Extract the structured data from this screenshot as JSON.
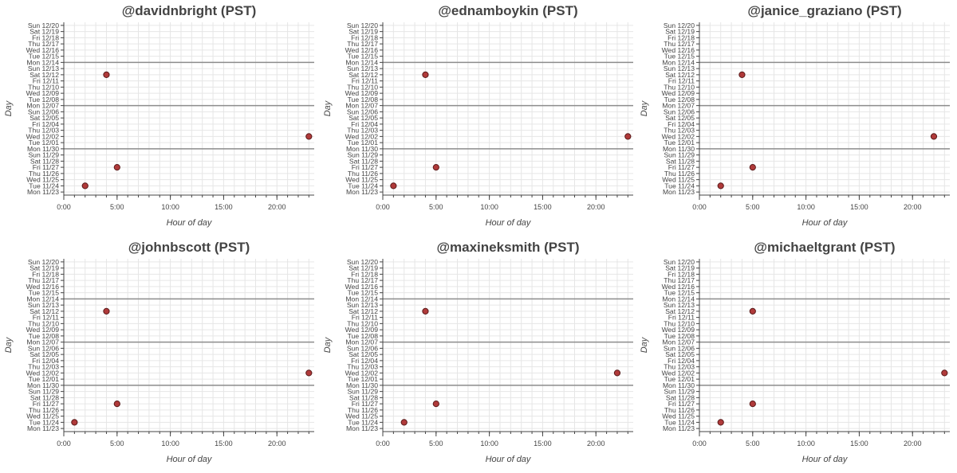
{
  "chart_data": [
    {
      "type": "scatter",
      "title": "@davidnbright (PST)",
      "xlabel": "Hour of day",
      "ylabel": "Day",
      "xlim": [
        0,
        23.5
      ],
      "x_ticks": [
        "0:00",
        "5:00",
        "10:00",
        "15:00",
        "20:00"
      ],
      "y_categories": [
        "Mon 11/23",
        "Tue 11/24",
        "Wed 11/25",
        "Thu 11/26",
        "Fri 11/27",
        "Sat 11/28",
        "Sun 11/29",
        "Mon 11/30",
        "Tue 12/01",
        "Wed 12/02",
        "Thu 12/03",
        "Fri 12/04",
        "Sat 12/05",
        "Sun 12/06",
        "Mon 12/07",
        "Tue 12/08",
        "Wed 12/09",
        "Thu 12/10",
        "Fri 12/11",
        "Sat 12/12",
        "Sun 12/13",
        "Mon 12/14",
        "Tue 12/15",
        "Wed 12/16",
        "Thu 12/17",
        "Fri 12/18",
        "Sat 12/19",
        "Sun 12/20"
      ],
      "week_separators": [
        "Mon 11/30",
        "Mon 12/07",
        "Mon 12/14"
      ],
      "grid": true,
      "points": [
        {
          "hour": 4,
          "day": "Sat 12/12"
        },
        {
          "hour": 23,
          "day": "Wed 12/02"
        },
        {
          "hour": 5,
          "day": "Fri 11/27"
        },
        {
          "hour": 2,
          "day": "Tue 11/24"
        }
      ]
    },
    {
      "type": "scatter",
      "title": "@ednamboykin (PST)",
      "xlabel": "Hour of day",
      "ylabel": "Day",
      "xlim": [
        0,
        23.5
      ],
      "x_ticks": [
        "0:00",
        "5:00",
        "10:00",
        "15:00",
        "20:00"
      ],
      "y_categories": [
        "Mon 11/23",
        "Tue 11/24",
        "Wed 11/25",
        "Thu 11/26",
        "Fri 11/27",
        "Sat 11/28",
        "Sun 11/29",
        "Mon 11/30",
        "Tue 12/01",
        "Wed 12/02",
        "Thu 12/03",
        "Fri 12/04",
        "Sat 12/05",
        "Sun 12/06",
        "Mon 12/07",
        "Tue 12/08",
        "Wed 12/09",
        "Thu 12/10",
        "Fri 12/11",
        "Sat 12/12",
        "Sun 12/13",
        "Mon 12/14",
        "Tue 12/15",
        "Wed 12/16",
        "Thu 12/17",
        "Fri 12/18",
        "Sat 12/19",
        "Sun 12/20"
      ],
      "week_separators": [
        "Mon 11/30",
        "Mon 12/07",
        "Mon 12/14"
      ],
      "grid": true,
      "points": [
        {
          "hour": 4,
          "day": "Sat 12/12"
        },
        {
          "hour": 23,
          "day": "Wed 12/02"
        },
        {
          "hour": 5,
          "day": "Fri 11/27"
        },
        {
          "hour": 1,
          "day": "Tue 11/24"
        }
      ]
    },
    {
      "type": "scatter",
      "title": "@janice_graziano (PST)",
      "xlabel": "Hour of day",
      "ylabel": "Day",
      "xlim": [
        0,
        23.5
      ],
      "x_ticks": [
        "0:00",
        "5:00",
        "10:00",
        "15:00",
        "20:00"
      ],
      "y_categories": [
        "Mon 11/23",
        "Tue 11/24",
        "Wed 11/25",
        "Thu 11/26",
        "Fri 11/27",
        "Sat 11/28",
        "Sun 11/29",
        "Mon 11/30",
        "Tue 12/01",
        "Wed 12/02",
        "Thu 12/03",
        "Fri 12/04",
        "Sat 12/05",
        "Sun 12/06",
        "Mon 12/07",
        "Tue 12/08",
        "Wed 12/09",
        "Thu 12/10",
        "Fri 12/11",
        "Sat 12/12",
        "Sun 12/13",
        "Mon 12/14",
        "Tue 12/15",
        "Wed 12/16",
        "Thu 12/17",
        "Fri 12/18",
        "Sat 12/19",
        "Sun 12/20"
      ],
      "week_separators": [
        "Mon 11/30",
        "Mon 12/07",
        "Mon 12/14"
      ],
      "grid": true,
      "points": [
        {
          "hour": 4,
          "day": "Sat 12/12"
        },
        {
          "hour": 22,
          "day": "Wed 12/02"
        },
        {
          "hour": 5,
          "day": "Fri 11/27"
        },
        {
          "hour": 2,
          "day": "Tue 11/24"
        }
      ]
    },
    {
      "type": "scatter",
      "title": "@johnbscott (PST)",
      "xlabel": "Hour of day",
      "ylabel": "Day",
      "xlim": [
        0,
        23.5
      ],
      "x_ticks": [
        "0:00",
        "5:00",
        "10:00",
        "15:00",
        "20:00"
      ],
      "y_categories": [
        "Mon 11/23",
        "Tue 11/24",
        "Wed 11/25",
        "Thu 11/26",
        "Fri 11/27",
        "Sat 11/28",
        "Sun 11/29",
        "Mon 11/30",
        "Tue 12/01",
        "Wed 12/02",
        "Thu 12/03",
        "Fri 12/04",
        "Sat 12/05",
        "Sun 12/06",
        "Mon 12/07",
        "Tue 12/08",
        "Wed 12/09",
        "Thu 12/10",
        "Fri 12/11",
        "Sat 12/12",
        "Sun 12/13",
        "Mon 12/14",
        "Tue 12/15",
        "Wed 12/16",
        "Thu 12/17",
        "Fri 12/18",
        "Sat 12/19",
        "Sun 12/20"
      ],
      "week_separators": [
        "Mon 11/30",
        "Mon 12/07",
        "Mon 12/14"
      ],
      "grid": true,
      "points": [
        {
          "hour": 4,
          "day": "Sat 12/12"
        },
        {
          "hour": 23,
          "day": "Wed 12/02"
        },
        {
          "hour": 5,
          "day": "Fri 11/27"
        },
        {
          "hour": 1,
          "day": "Tue 11/24"
        }
      ]
    },
    {
      "type": "scatter",
      "title": "@maxineksmith (PST)",
      "xlabel": "Hour of day",
      "ylabel": "Day",
      "xlim": [
        0,
        23.5
      ],
      "x_ticks": [
        "0:00",
        "5:00",
        "10:00",
        "15:00",
        "20:00"
      ],
      "y_categories": [
        "Mon 11/23",
        "Tue 11/24",
        "Wed 11/25",
        "Thu 11/26",
        "Fri 11/27",
        "Sat 11/28",
        "Sun 11/29",
        "Mon 11/30",
        "Tue 12/01",
        "Wed 12/02",
        "Thu 12/03",
        "Fri 12/04",
        "Sat 12/05",
        "Sun 12/06",
        "Mon 12/07",
        "Tue 12/08",
        "Wed 12/09",
        "Thu 12/10",
        "Fri 12/11",
        "Sat 12/12",
        "Sun 12/13",
        "Mon 12/14",
        "Tue 12/15",
        "Wed 12/16",
        "Thu 12/17",
        "Fri 12/18",
        "Sat 12/19",
        "Sun 12/20"
      ],
      "week_separators": [
        "Mon 11/30",
        "Mon 12/07",
        "Mon 12/14"
      ],
      "grid": true,
      "points": [
        {
          "hour": 4,
          "day": "Sat 12/12"
        },
        {
          "hour": 22,
          "day": "Wed 12/02"
        },
        {
          "hour": 5,
          "day": "Fri 11/27"
        },
        {
          "hour": 2,
          "day": "Tue 11/24"
        }
      ]
    },
    {
      "type": "scatter",
      "title": "@michaeltgrant (PST)",
      "xlabel": "Hour of day",
      "ylabel": "Day",
      "xlim": [
        0,
        23.5
      ],
      "x_ticks": [
        "0:00",
        "5:00",
        "10:00",
        "15:00",
        "20:00"
      ],
      "y_categories": [
        "Mon 11/23",
        "Tue 11/24",
        "Wed 11/25",
        "Thu 11/26",
        "Fri 11/27",
        "Sat 11/28",
        "Sun 11/29",
        "Mon 11/30",
        "Tue 12/01",
        "Wed 12/02",
        "Thu 12/03",
        "Fri 12/04",
        "Sat 12/05",
        "Sun 12/06",
        "Mon 12/07",
        "Tue 12/08",
        "Wed 12/09",
        "Thu 12/10",
        "Fri 12/11",
        "Sat 12/12",
        "Sun 12/13",
        "Mon 12/14",
        "Tue 12/15",
        "Wed 12/16",
        "Thu 12/17",
        "Fri 12/18",
        "Sat 12/19",
        "Sun 12/20"
      ],
      "week_separators": [
        "Mon 11/30",
        "Mon 12/07",
        "Mon 12/14"
      ],
      "grid": true,
      "points": [
        {
          "hour": 5,
          "day": "Sat 12/12"
        },
        {
          "hour": 23,
          "day": "Wed 12/02"
        },
        {
          "hour": 5,
          "day": "Fri 11/27"
        },
        {
          "hour": 2,
          "day": "Tue 11/24"
        }
      ]
    }
  ],
  "colors": {
    "marker_fill": "#b03a3a",
    "marker_stroke": "#5a1a1a",
    "grid": "#e6e6e6",
    "separator": "#8c8c8c",
    "axis": "#444444",
    "text": "#444444"
  }
}
